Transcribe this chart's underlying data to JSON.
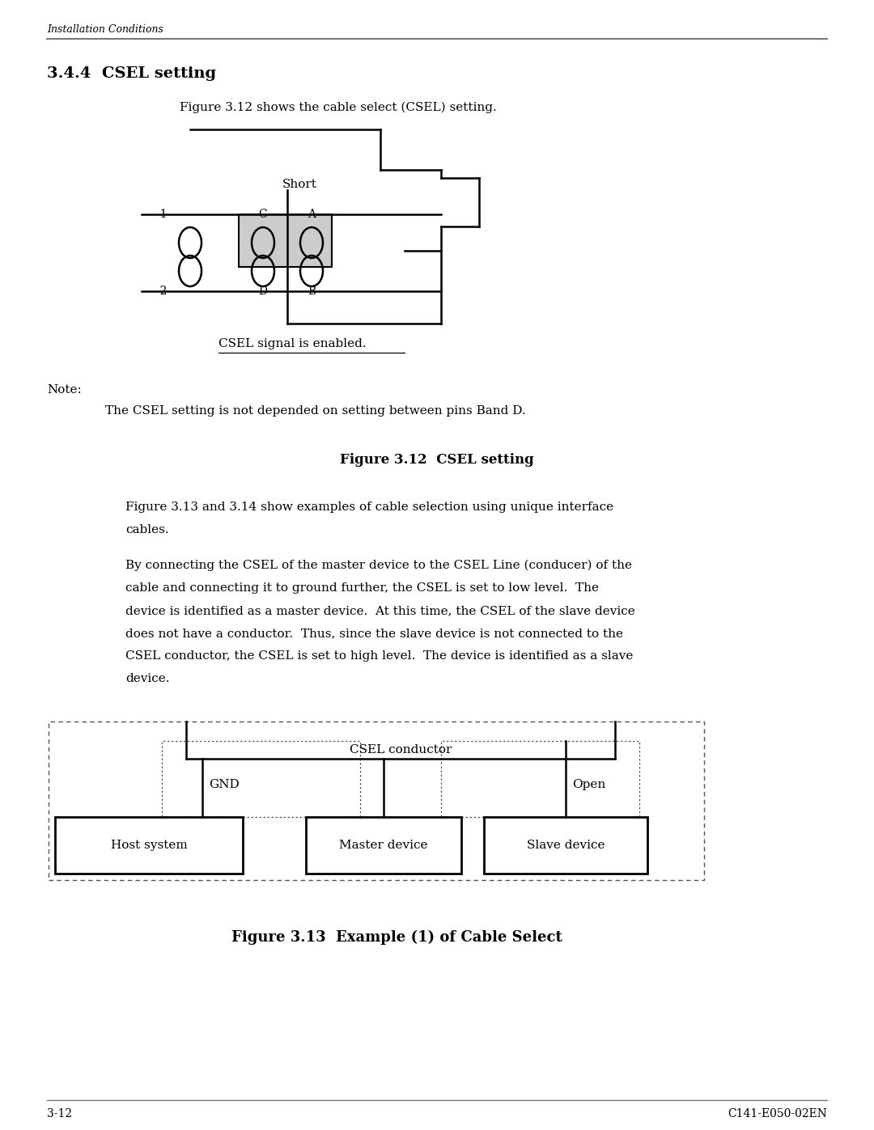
{
  "page_title": "Installation Conditions",
  "section_title": "3.4.4  CSEL setting",
  "intro_text": "Figure 3.12 shows the cable select (CSEL) setting.",
  "note_label": "Note:",
  "note_text": "The CSEL setting is not depended on setting between pins Band D.",
  "figure1_caption": "Figure 3.12  CSEL setting",
  "figure2_caption": "Figure 3.13  Example (1) of Cable Select",
  "p1_line1": "Figure 3.13 and 3.14 show examples of cable selection using unique interface",
  "p1_line2": "cables.",
  "p2_lines": [
    "By connecting the CSEL of the master device to the CSEL Line (conducer) of the",
    "cable and connecting it to ground further, the CSEL is set to low level.  The",
    "device is identified as a master device.  At this time, the CSEL of the slave device",
    "does not have a conductor.  Thus, since the slave device is not connected to the",
    "CSEL conductor, the CSEL is set to high level.  The device is identified as a slave",
    "device."
  ],
  "csel_label": "CSEL signal is enabled.",
  "gnd_label": "GND",
  "open_label": "Open",
  "csel_conductor_label": "CSEL conductor",
  "host_label": "Host system",
  "master_label": "Master device",
  "slave_label": "Slave device",
  "bg_color": "#ffffff",
  "text_color": "#000000",
  "header_line_color": "#777777",
  "page_num": "3-12",
  "doc_num": "C141-E050-02EN"
}
